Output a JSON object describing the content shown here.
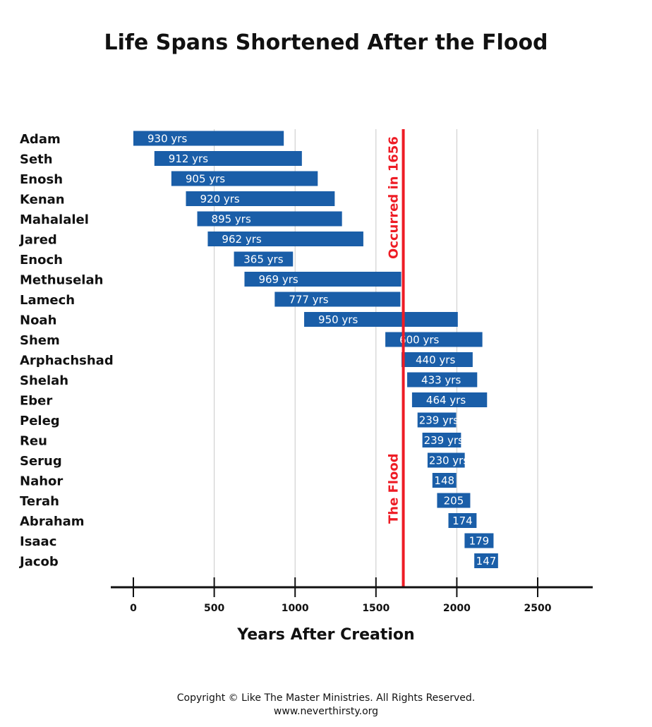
{
  "chart_data": {
    "type": "bar",
    "orientation": "horizontal-range",
    "title": "Life Spans Shortened After the Flood",
    "xlabel": "Years After Creation",
    "xlim": [
      0,
      2800
    ],
    "xticks": [
      0,
      500,
      1000,
      1500,
      2000,
      2500
    ],
    "grid": true,
    "colors": {
      "bar": "#1a5ea8",
      "flood": "#ee1c25"
    },
    "flood": {
      "year": 1656,
      "label_top": "Occurred in 1656",
      "label_bottom": "The Flood"
    },
    "series": [
      {
        "name": "Adam",
        "start": 0,
        "end": 930,
        "label": "930 yrs"
      },
      {
        "name": "Seth",
        "start": 130,
        "end": 1042,
        "label": "912 yrs"
      },
      {
        "name": "Enosh",
        "start": 235,
        "end": 1140,
        "label": "905 yrs"
      },
      {
        "name": "Kenan",
        "start": 325,
        "end": 1245,
        "label": "920 yrs"
      },
      {
        "name": "Mahalalel",
        "start": 395,
        "end": 1290,
        "label": "895 yrs"
      },
      {
        "name": "Jared",
        "start": 460,
        "end": 1422,
        "label": "962 yrs"
      },
      {
        "name": "Enoch",
        "start": 622,
        "end": 987,
        "label": "365 yrs"
      },
      {
        "name": "Methuselah",
        "start": 687,
        "end": 1656,
        "label": "969 yrs"
      },
      {
        "name": "Lamech",
        "start": 874,
        "end": 1651,
        "label": "777 yrs"
      },
      {
        "name": "Noah",
        "start": 1056,
        "end": 2006,
        "label": "950 yrs"
      },
      {
        "name": "Shem",
        "start": 1558,
        "end": 2158,
        "label": "600 yrs"
      },
      {
        "name": "Arphachshad",
        "start": 1658,
        "end": 2098,
        "label": "440 yrs"
      },
      {
        "name": "Shelah",
        "start": 1693,
        "end": 2126,
        "label": "433 yrs"
      },
      {
        "name": "Eber",
        "start": 1723,
        "end": 2187,
        "label": "464 yrs"
      },
      {
        "name": "Peleg",
        "start": 1757,
        "end": 1996,
        "label": "239 yrs"
      },
      {
        "name": "Reu",
        "start": 1787,
        "end": 2026,
        "label": "239 yrs"
      },
      {
        "name": "Serug",
        "start": 1819,
        "end": 2049,
        "label": "230 yrs"
      },
      {
        "name": "Nahor",
        "start": 1849,
        "end": 1997,
        "label": "148"
      },
      {
        "name": "Terah",
        "start": 1878,
        "end": 2083,
        "label": "205"
      },
      {
        "name": "Abraham",
        "start": 1948,
        "end": 2122,
        "label": "174"
      },
      {
        "name": "Isaac",
        "start": 2048,
        "end": 2227,
        "label": "179"
      },
      {
        "name": "Jacob",
        "start": 2108,
        "end": 2255,
        "label": "147"
      }
    ]
  },
  "footer": {
    "copyright": "Copyright © Like The Master Ministries. All Rights Reserved.",
    "url": "www.neverthirsty.org"
  }
}
